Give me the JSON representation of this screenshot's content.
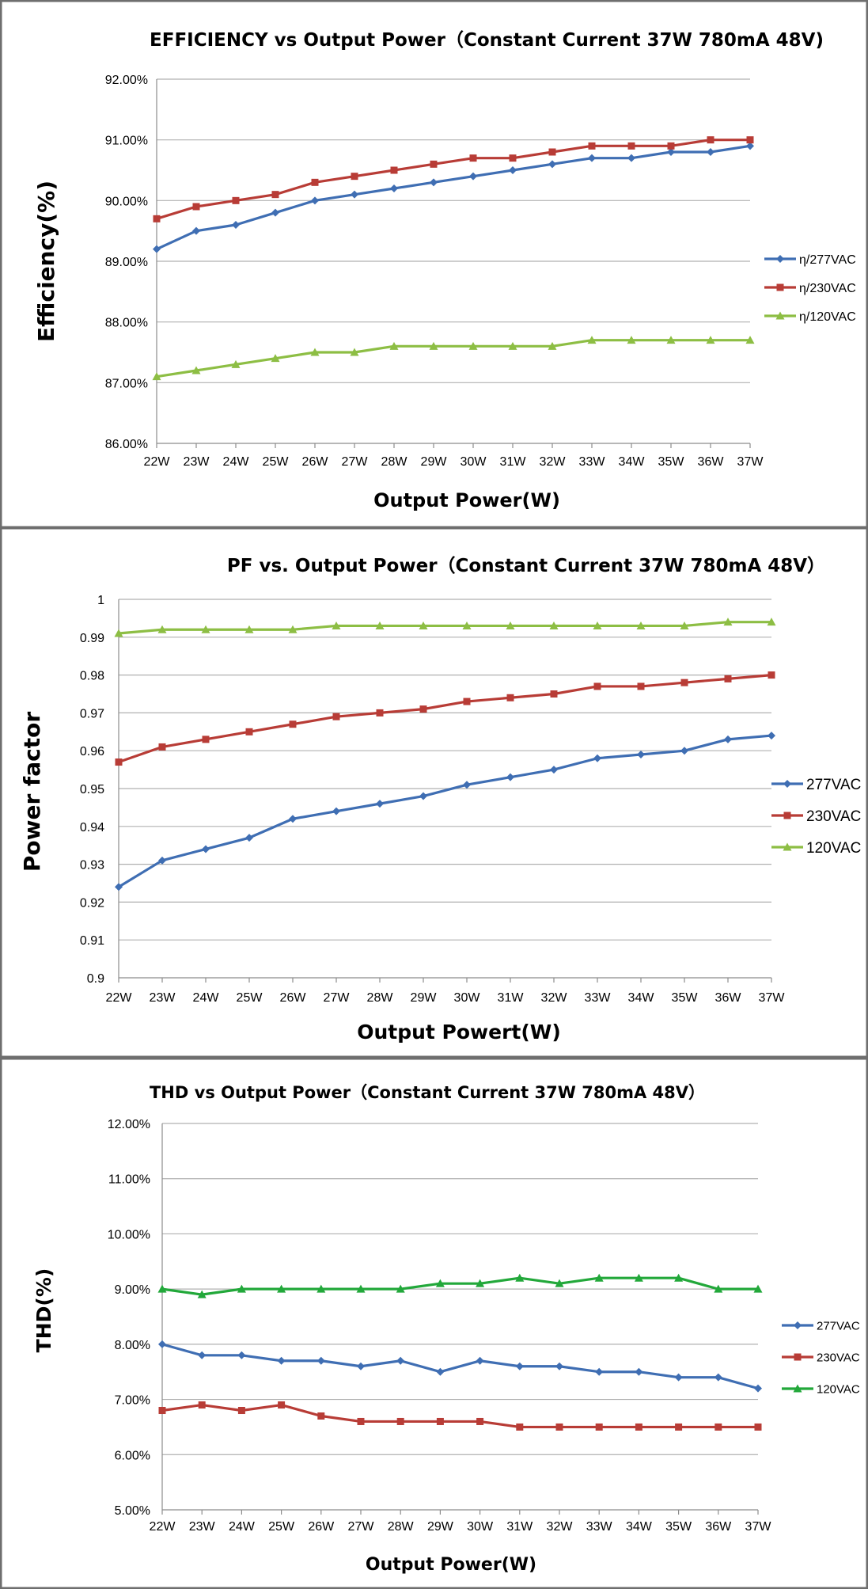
{
  "colors": {
    "277": "#3f6eb3",
    "230": "#b83c36",
    "120": "#8dbe44",
    "120_thd": "#22a83a"
  },
  "chart_data": [
    {
      "type": "line",
      "title": "EFFICIENCY vs Output Power（Constant Current 37W 780mA 48V)",
      "xlabel": "Output Power(W)",
      "ylabel": "Efficiency(%)",
      "categories": [
        "22W",
        "23W",
        "24W",
        "25W",
        "26W",
        "27W",
        "28W",
        "29W",
        "30W",
        "31W",
        "32W",
        "33W",
        "34W",
        "35W",
        "36W",
        "37W"
      ],
      "ylim": [
        86,
        92
      ],
      "y_ticks": [
        "86.00%",
        "87.00%",
        "88.00%",
        "89.00%",
        "90.00%",
        "91.00%",
        "92.00%"
      ],
      "grid": true,
      "legend": "right",
      "series": [
        {
          "name": "η/277VAC",
          "color_key": "277",
          "marker": "diamond",
          "values": [
            89.2,
            89.5,
            89.6,
            89.8,
            90.0,
            90.1,
            90.2,
            90.3,
            90.4,
            90.5,
            90.6,
            90.7,
            90.7,
            90.8,
            90.8,
            90.9
          ]
        },
        {
          "name": "η/230VAC",
          "color_key": "230",
          "marker": "square",
          "values": [
            89.7,
            89.9,
            90.0,
            90.1,
            90.3,
            90.4,
            90.5,
            90.6,
            90.7,
            90.7,
            90.8,
            90.9,
            90.9,
            90.9,
            91.0,
            91.0
          ]
        },
        {
          "name": "η/120VAC",
          "color_key": "120",
          "marker": "triangle",
          "values": [
            87.1,
            87.2,
            87.3,
            87.4,
            87.5,
            87.5,
            87.6,
            87.6,
            87.6,
            87.6,
            87.6,
            87.7,
            87.7,
            87.7,
            87.7,
            87.7
          ]
        }
      ]
    },
    {
      "type": "line",
      "title": "PF vs. Output Power（Constant Current 37W 780mA 48V）",
      "xlabel": "Output Powert(W)",
      "ylabel": "Power factor",
      "categories": [
        "22W",
        "23W",
        "24W",
        "25W",
        "26W",
        "27W",
        "28W",
        "29W",
        "30W",
        "31W",
        "32W",
        "33W",
        "34W",
        "35W",
        "36W",
        "37W"
      ],
      "ylim": [
        0.9,
        1.0
      ],
      "y_ticks": [
        "0.9",
        "0.91",
        "0.92",
        "0.93",
        "0.94",
        "0.95",
        "0.96",
        "0.97",
        "0.98",
        "0.99",
        "1"
      ],
      "grid": true,
      "legend": "right",
      "series": [
        {
          "name": "277VAC",
          "color_key": "277",
          "marker": "diamond",
          "values": [
            0.924,
            0.931,
            0.934,
            0.937,
            0.942,
            0.944,
            0.946,
            0.948,
            0.951,
            0.953,
            0.955,
            0.958,
            0.959,
            0.96,
            0.963,
            0.964
          ]
        },
        {
          "name": "230VAC",
          "color_key": "230",
          "marker": "square",
          "values": [
            0.957,
            0.961,
            0.963,
            0.965,
            0.967,
            0.969,
            0.97,
            0.971,
            0.973,
            0.974,
            0.975,
            0.977,
            0.977,
            0.978,
            0.979,
            0.98
          ]
        },
        {
          "name": "120VAC",
          "color_key": "120",
          "marker": "triangle",
          "values": [
            0.991,
            0.992,
            0.992,
            0.992,
            0.992,
            0.993,
            0.993,
            0.993,
            0.993,
            0.993,
            0.993,
            0.993,
            0.993,
            0.993,
            0.994,
            0.994
          ]
        }
      ]
    },
    {
      "type": "line",
      "title": "THD vs Output Power（Constant Current 37W  780mA 48V）",
      "xlabel": "Output Power(W)",
      "ylabel": "THD(%)",
      "categories": [
        "22W",
        "23W",
        "24W",
        "25W",
        "26W",
        "27W",
        "28W",
        "29W",
        "30W",
        "31W",
        "32W",
        "33W",
        "34W",
        "35W",
        "36W",
        "37W"
      ],
      "ylim": [
        5,
        12
      ],
      "y_ticks": [
        "5.00%",
        "6.00%",
        "7.00%",
        "8.00%",
        "9.00%",
        "10.00%",
        "11.00%",
        "12.00%"
      ],
      "grid": true,
      "legend": "right",
      "series": [
        {
          "name": "277VAC",
          "color_key": "277",
          "marker": "diamond",
          "values": [
            8.0,
            7.8,
            7.8,
            7.7,
            7.7,
            7.6,
            7.7,
            7.5,
            7.7,
            7.6,
            7.6,
            7.5,
            7.5,
            7.4,
            7.4,
            7.2
          ]
        },
        {
          "name": "230VAC",
          "color_key": "230",
          "marker": "square",
          "values": [
            6.8,
            6.9,
            6.8,
            6.9,
            6.7,
            6.6,
            6.6,
            6.6,
            6.6,
            6.5,
            6.5,
            6.5,
            6.5,
            6.5,
            6.5,
            6.5
          ]
        },
        {
          "name": "120VAC",
          "color_key": "120_thd",
          "marker": "triangle",
          "values": [
            9.0,
            8.9,
            9.0,
            9.0,
            9.0,
            9.0,
            9.0,
            9.1,
            9.1,
            9.2,
            9.1,
            9.2,
            9.2,
            9.2,
            9.0,
            9.0
          ]
        }
      ]
    }
  ]
}
